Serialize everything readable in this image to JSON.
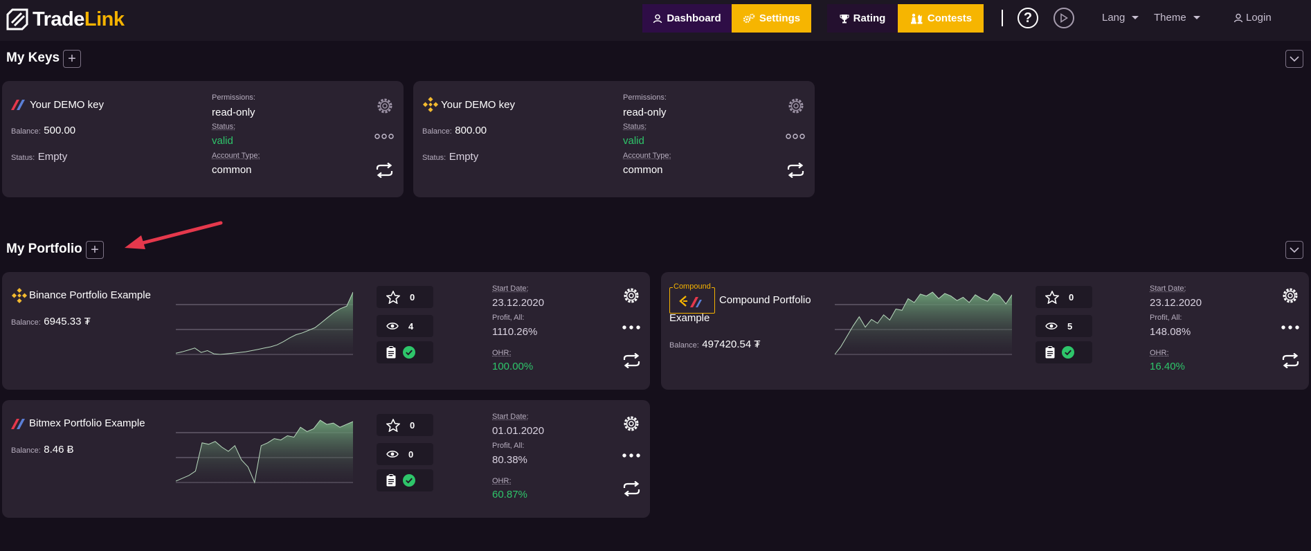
{
  "brand": {
    "name_part1": "Trade",
    "name_part2": "Link"
  },
  "nav": {
    "dashboard": "Dashboard",
    "settings": "Settings",
    "rating": "Rating",
    "contests": "Contests",
    "lang": "Lang",
    "theme": "Theme",
    "login": "Login"
  },
  "sections": {
    "keys_title": "My Keys",
    "portfolio_title": "My Portfolio"
  },
  "keys": [
    {
      "exchange_icon": "bitmex-icon",
      "name": "Your DEMO key",
      "balance_label": "Balance:",
      "balance": "500.00",
      "status_label": "Status:",
      "status": "Empty",
      "permissions_label": "Permissions:",
      "permissions": "read-only",
      "status2_label": "Status:",
      "status2": "valid",
      "account_type_label": "Account Type:",
      "account_type": "common"
    },
    {
      "exchange_icon": "binance-icon",
      "name": "Your DEMO key",
      "balance_label": "Balance:",
      "balance": "800.00",
      "status_label": "Status:",
      "status": "Empty",
      "permissions_label": "Permissions:",
      "permissions": "read-only",
      "status2_label": "Status:",
      "status2": "valid",
      "account_type_label": "Account Type:",
      "account_type": "common"
    }
  ],
  "portfolios": [
    {
      "exchange_icon": "binance-icon",
      "name": "Binance Portfolio Example",
      "balance_label": "Balance:",
      "balance": "6945.33 ₮",
      "stars": "0",
      "views": "4",
      "start_date_label": "Start Date:",
      "start_date": "23.12.2020",
      "profit_label": "Profit, All:",
      "profit": "1110.26%",
      "ohr_label": "OHR:",
      "ohr": "100.00%",
      "chart_data": {
        "type": "area",
        "values": [
          4,
          6,
          9,
          12,
          5,
          8,
          3,
          2,
          3,
          4,
          5,
          6,
          8,
          10,
          12,
          14,
          17,
          22,
          28,
          33,
          36,
          40,
          44,
          52,
          60,
          68,
          74,
          78,
          100
        ]
      }
    },
    {
      "exchange_icon": "compound-icon",
      "badge": "Compound",
      "name_line1": "Compound Portfolio",
      "name_line2": "Example",
      "balance_label": "Balance:",
      "balance": "497420.54 ₮",
      "stars": "0",
      "views": "5",
      "start_date_label": "Start Date:",
      "start_date": "23.12.2020",
      "profit_label": "Profit, All:",
      "profit": "148.08%",
      "ohr_label": "OHR:",
      "ohr": "16.40%",
      "chart_data": {
        "type": "area",
        "values": [
          2,
          14,
          30,
          46,
          60,
          44,
          56,
          50,
          63,
          55,
          72,
          70,
          88,
          82,
          95,
          92,
          98,
          88,
          96,
          92,
          85,
          90,
          82,
          94,
          88,
          84,
          96,
          92,
          80,
          94
        ]
      }
    },
    {
      "exchange_icon": "bitmex-icon",
      "name": "Bitmex Portfolio Example",
      "balance_label": "Balance:",
      "balance": "8.46 Ƀ",
      "stars": "0",
      "views": "0",
      "start_date_label": "Start Date:",
      "start_date": "01.01.2020",
      "profit_label": "Profit, All:",
      "profit": "80.38%",
      "ohr_label": "OHR:",
      "ohr": "60.87%",
      "chart_data": {
        "type": "area",
        "values": [
          10,
          14,
          18,
          24,
          64,
          62,
          66,
          58,
          52,
          60,
          40,
          30,
          8,
          60,
          64,
          70,
          68,
          74,
          72,
          86,
          80,
          84,
          96,
          90,
          92,
          86,
          90,
          94
        ]
      }
    }
  ],
  "colors": {
    "accent": "#f6b501",
    "positive": "#2ec56a",
    "arrow": "#e5384c"
  }
}
